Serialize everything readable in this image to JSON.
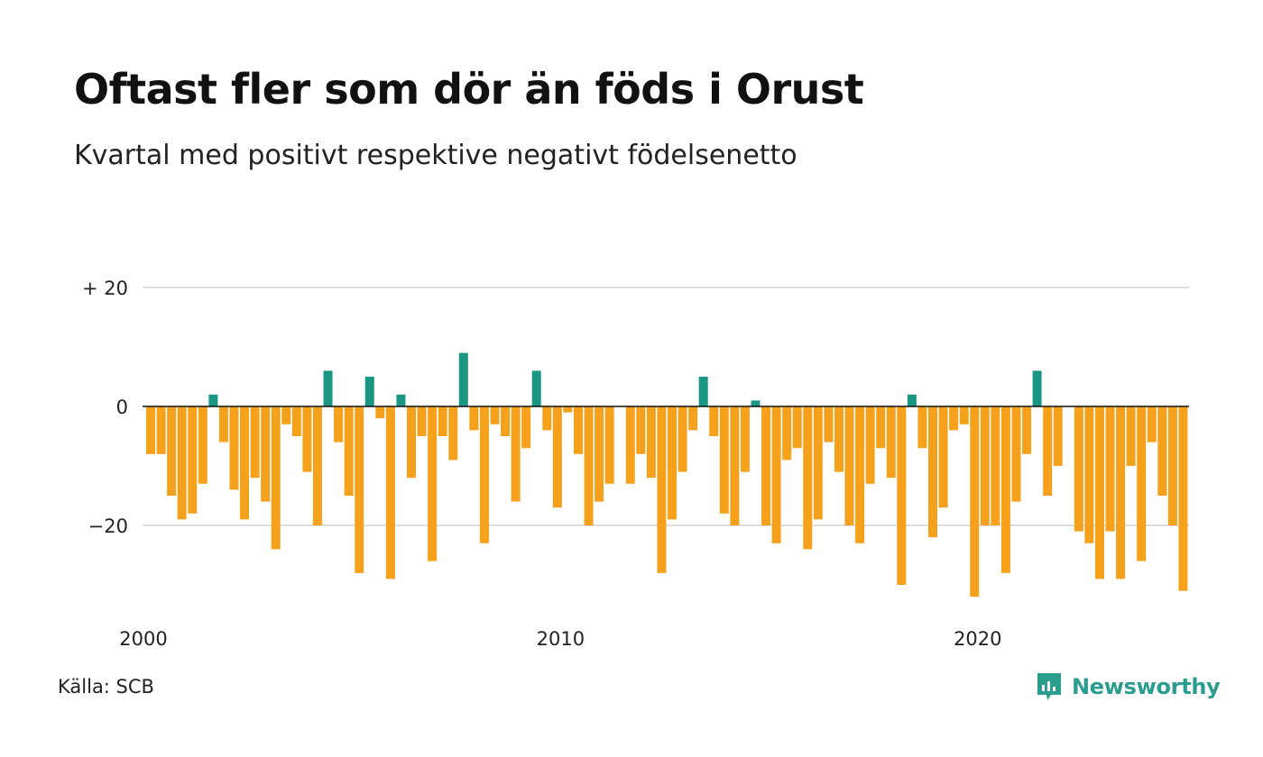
{
  "title": "Oftast fler som dör än föds i Orust",
  "subtitle": "Kvartal med positivt respektive negativt födelsenetto",
  "source": "Källa: SCB",
  "brand": "Newsworthy",
  "colors": {
    "positive": "#1a9685",
    "negative": "#f6a11c",
    "brand": "#2a9d8f",
    "grid": "#dddddd"
  },
  "chart_data": {
    "type": "bar",
    "title": "Oftast fler som dör än föds i Orust",
    "subtitle": "Kvartal med positivt respektive negativt födelsenetto",
    "xlabel": "",
    "ylabel": "",
    "x_start": 2000,
    "x_step_per_bar": 0.25,
    "ylim": [
      -33,
      25
    ],
    "y_ticks": [
      {
        "value": 20,
        "label": "+ 20"
      },
      {
        "value": 0,
        "label": "0"
      },
      {
        "value": -20,
        "label": "−20"
      }
    ],
    "x_ticks": [
      {
        "value": 2000,
        "label": "2000"
      },
      {
        "value": 2010,
        "label": "2010"
      },
      {
        "value": 2020,
        "label": "2020"
      }
    ],
    "grid": true,
    "values": [
      -8,
      -8,
      -15,
      -19,
      -18,
      -13,
      2,
      -6,
      -14,
      -19,
      -12,
      -16,
      -24,
      -3,
      -5,
      -11,
      -20,
      6,
      -6,
      -15,
      -28,
      5,
      -2,
      -29,
      2,
      -12,
      -5,
      -26,
      -5,
      -9,
      9,
      -4,
      -23,
      -3,
      -5,
      -16,
      -7,
      6,
      -4,
      -17,
      -1,
      -8,
      -20,
      -16,
      -13,
      0,
      -13,
      -8,
      -12,
      -28,
      -19,
      -11,
      -4,
      5,
      -5,
      -18,
      -20,
      -11,
      1,
      -20,
      -23,
      -9,
      -7,
      -24,
      -19,
      -6,
      -11,
      -20,
      -23,
      -13,
      -7,
      -12,
      -30,
      2,
      -7,
      -22,
      -17,
      -4,
      -3,
      -32,
      -20,
      -20,
      -28,
      -16,
      -8,
      6,
      -15,
      -10,
      0,
      -21,
      -23,
      -29,
      -21,
      -29,
      -10,
      -26,
      -6,
      -15,
      -20,
      -31
    ]
  }
}
